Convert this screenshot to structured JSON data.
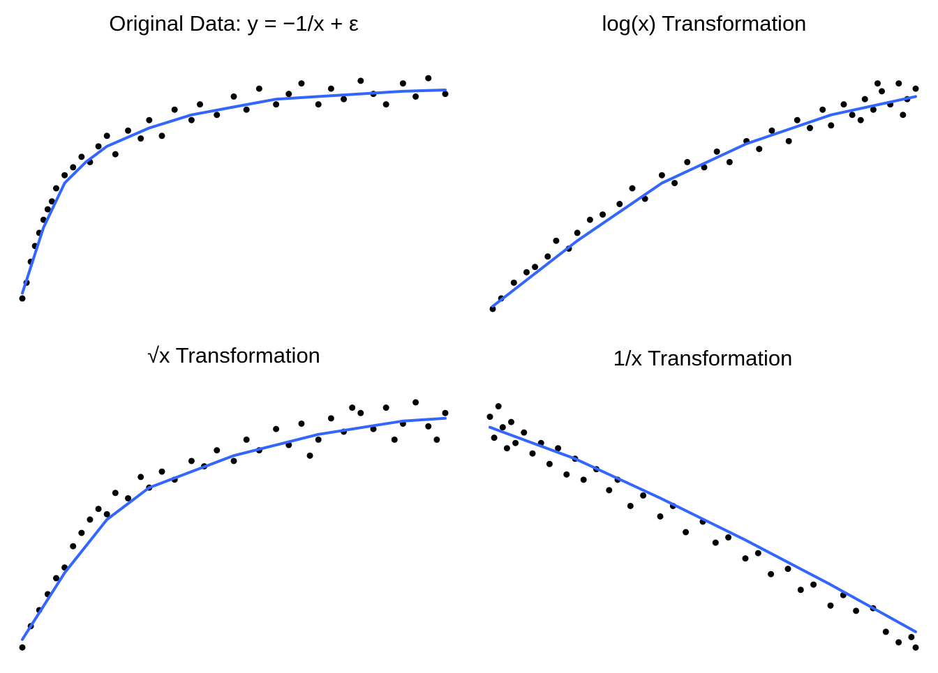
{
  "chart_data": [
    {
      "type": "scatter",
      "title": "Original Data: y = −1/x + ε",
      "x": [
        0,
        0.01,
        0.02,
        0.03,
        0.04,
        0.05,
        0.06,
        0.07,
        0.08,
        0.1,
        0.12,
        0.14,
        0.16,
        0.18,
        0.2,
        0.22,
        0.25,
        0.28,
        0.3,
        0.33,
        0.36,
        0.4,
        0.42,
        0.46,
        0.5,
        0.53,
        0.56,
        0.6,
        0.63,
        0.66,
        0.7,
        0.73,
        0.76,
        0.8,
        0.83,
        0.86,
        0.9,
        0.93,
        0.96,
        1
      ],
      "values": [
        0.08,
        0.14,
        0.22,
        0.28,
        0.33,
        0.38,
        0.42,
        0.45,
        0.5,
        0.55,
        0.58,
        0.62,
        0.6,
        0.66,
        0.7,
        0.63,
        0.72,
        0.69,
        0.76,
        0.7,
        0.8,
        0.76,
        0.82,
        0.78,
        0.85,
        0.8,
        0.88,
        0.82,
        0.86,
        0.9,
        0.82,
        0.88,
        0.84,
        0.91,
        0.86,
        0.82,
        0.9,
        0.85,
        0.92,
        0.86
      ],
      "color": "#000000",
      "smooth": {
        "x": [
          0,
          0.05,
          0.1,
          0.15,
          0.2,
          0.3,
          0.4,
          0.5,
          0.6,
          0.7,
          0.8,
          0.9,
          1
        ],
        "values": [
          0.1,
          0.35,
          0.52,
          0.6,
          0.66,
          0.73,
          0.78,
          0.81,
          0.84,
          0.85,
          0.86,
          0.87,
          0.875
        ],
        "color": "#3366ff"
      },
      "xlim": [
        0,
        1
      ],
      "ylim": [
        0,
        1
      ]
    },
    {
      "type": "scatter",
      "title": "log(x) Transformation",
      "x": [
        0,
        0.02,
        0.05,
        0.08,
        0.1,
        0.13,
        0.15,
        0.18,
        0.2,
        0.23,
        0.26,
        0.3,
        0.33,
        0.36,
        0.4,
        0.43,
        0.46,
        0.5,
        0.53,
        0.56,
        0.6,
        0.63,
        0.66,
        0.7,
        0.72,
        0.75,
        0.78,
        0.8,
        0.83,
        0.85,
        0.88,
        0.9,
        0.92,
        0.94,
        0.96,
        0.98,
        1,
        0.97,
        0.91,
        0.87
      ],
      "values": [
        0.04,
        0.08,
        0.14,
        0.18,
        0.2,
        0.24,
        0.3,
        0.27,
        0.33,
        0.38,
        0.4,
        0.44,
        0.5,
        0.46,
        0.55,
        0.52,
        0.6,
        0.58,
        0.64,
        0.6,
        0.68,
        0.65,
        0.72,
        0.68,
        0.76,
        0.73,
        0.8,
        0.74,
        0.82,
        0.78,
        0.84,
        0.8,
        0.87,
        0.82,
        0.9,
        0.84,
        0.88,
        0.78,
        0.9,
        0.76
      ],
      "color": "#000000",
      "smooth": {
        "x": [
          0,
          0.2,
          0.4,
          0.6,
          0.8,
          1
        ],
        "values": [
          0.05,
          0.3,
          0.52,
          0.67,
          0.78,
          0.85
        ],
        "color": "#3366ff"
      },
      "xlim": [
        0,
        1
      ],
      "ylim": [
        0,
        1
      ]
    },
    {
      "type": "scatter",
      "title": "√x Transformation",
      "x": [
        0,
        0.02,
        0.04,
        0.06,
        0.08,
        0.1,
        0.12,
        0.14,
        0.16,
        0.18,
        0.2,
        0.22,
        0.25,
        0.28,
        0.3,
        0.33,
        0.36,
        0.4,
        0.43,
        0.46,
        0.5,
        0.53,
        0.56,
        0.6,
        0.63,
        0.66,
        0.7,
        0.73,
        0.76,
        0.8,
        0.83,
        0.86,
        0.9,
        0.93,
        0.96,
        1,
        0.98,
        0.88,
        0.78,
        0.68
      ],
      "values": [
        0.02,
        0.1,
        0.16,
        0.22,
        0.28,
        0.32,
        0.4,
        0.45,
        0.5,
        0.54,
        0.52,
        0.6,
        0.58,
        0.66,
        0.62,
        0.68,
        0.65,
        0.72,
        0.7,
        0.76,
        0.72,
        0.8,
        0.76,
        0.84,
        0.78,
        0.86,
        0.8,
        0.88,
        0.83,
        0.9,
        0.84,
        0.92,
        0.86,
        0.94,
        0.85,
        0.9,
        0.8,
        0.8,
        0.92,
        0.74
      ],
      "color": "#000000",
      "smooth": {
        "x": [
          0,
          0.1,
          0.2,
          0.3,
          0.5,
          0.7,
          0.9,
          1
        ],
        "values": [
          0.05,
          0.3,
          0.5,
          0.62,
          0.74,
          0.82,
          0.87,
          0.88
        ],
        "color": "#3366ff"
      },
      "xlim": [
        0,
        1
      ],
      "ylim": [
        0,
        1
      ]
    },
    {
      "type": "scatter",
      "title": "1/x Transformation",
      "x": [
        0,
        0.01,
        0.02,
        0.03,
        0.04,
        0.05,
        0.06,
        0.08,
        0.1,
        0.12,
        0.14,
        0.16,
        0.18,
        0.2,
        0.22,
        0.25,
        0.28,
        0.3,
        0.33,
        0.36,
        0.4,
        0.43,
        0.46,
        0.5,
        0.53,
        0.56,
        0.6,
        0.63,
        0.66,
        0.7,
        0.73,
        0.76,
        0.8,
        0.83,
        0.86,
        0.9,
        0.93,
        0.96,
        0.99,
        1
      ],
      "values": [
        0.9,
        0.82,
        0.94,
        0.86,
        0.78,
        0.88,
        0.8,
        0.84,
        0.76,
        0.8,
        0.72,
        0.78,
        0.68,
        0.74,
        0.66,
        0.7,
        0.62,
        0.66,
        0.56,
        0.6,
        0.52,
        0.56,
        0.46,
        0.5,
        0.42,
        0.44,
        0.36,
        0.38,
        0.3,
        0.32,
        0.24,
        0.26,
        0.18,
        0.22,
        0.16,
        0.17,
        0.08,
        0.04,
        0.06,
        0.02
      ],
      "color": "#000000",
      "smooth": {
        "x": [
          0,
          0.2,
          0.4,
          0.6,
          0.8,
          1
        ],
        "values": [
          0.86,
          0.74,
          0.59,
          0.43,
          0.26,
          0.08
        ],
        "color": "#3366ff"
      },
      "xlim": [
        0,
        1
      ],
      "ylim": [
        0,
        1
      ]
    }
  ]
}
